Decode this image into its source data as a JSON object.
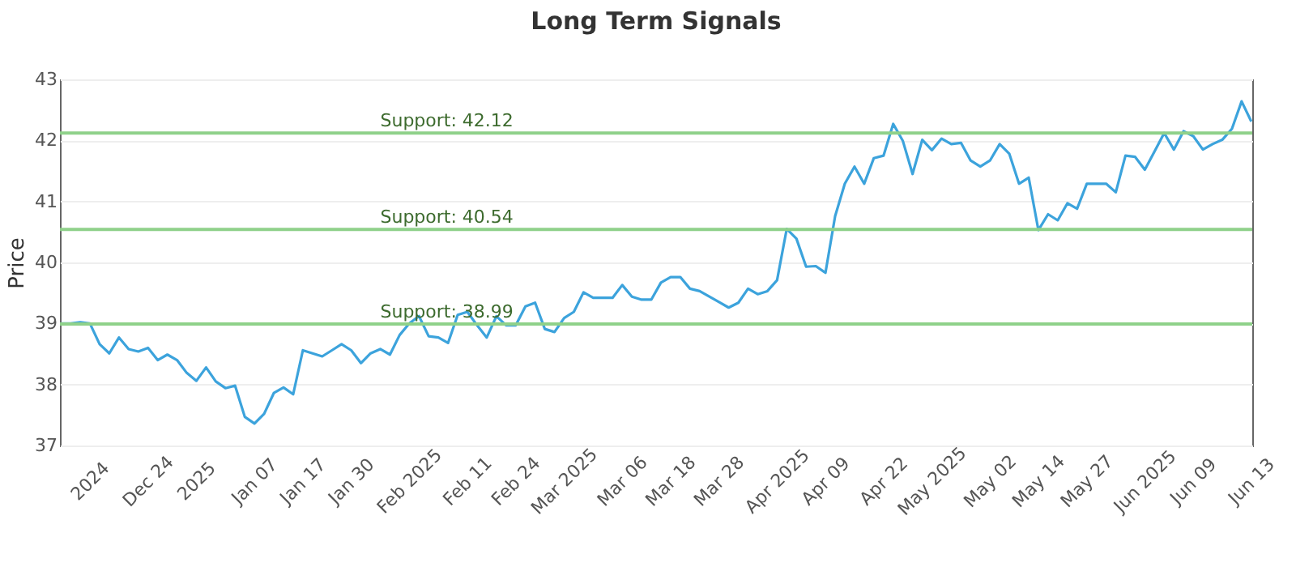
{
  "chart_data": {
    "type": "line",
    "title": "Long Term Signals",
    "ylabel": "Price",
    "categories": [
      null,
      null,
      null,
      "2024",
      null,
      null,
      null,
      null,
      null,
      "Dec 24",
      null,
      null,
      null,
      null,
      "2025",
      null,
      null,
      null,
      null,
      null,
      "Jan 07",
      null,
      null,
      null,
      null,
      "Jan 17",
      null,
      null,
      null,
      null,
      "Jan 30",
      null,
      null,
      null,
      null,
      null,
      "Feb 2025",
      null,
      null,
      null,
      null,
      null,
      "Feb 11",
      null,
      null,
      null,
      null,
      "Feb 24",
      null,
      null,
      null,
      null,
      "Mar 2025",
      null,
      null,
      null,
      null,
      null,
      "Mar 06",
      null,
      null,
      null,
      null,
      "Mar 18",
      null,
      null,
      null,
      null,
      "Mar 28",
      null,
      null,
      null,
      null,
      null,
      "Apr 2025",
      null,
      null,
      null,
      null,
      "Apr 09",
      null,
      null,
      null,
      null,
      null,
      "Apr 22",
      null,
      null,
      null,
      null,
      "May 2025",
      null,
      null,
      null,
      null,
      null,
      "May 02",
      null,
      null,
      null,
      null,
      "May 14",
      null,
      null,
      null,
      null,
      "May 27",
      null,
      null,
      null,
      null,
      null,
      "Jun 2025",
      null,
      null,
      null,
      null,
      "Jun 09",
      null,
      null,
      null,
      null,
      null,
      "Jun 13"
    ],
    "series": [
      {
        "color": "#3ca3dc",
        "values": [
          39.0,
          39.0,
          39.02,
          39.0,
          38.66,
          38.51,
          38.77,
          38.58,
          38.54,
          38.6,
          38.4,
          38.49,
          38.4,
          38.19,
          38.06,
          38.28,
          38.05,
          37.94,
          37.98,
          37.47,
          37.36,
          37.52,
          37.86,
          37.95,
          37.84,
          38.56,
          38.51,
          38.46,
          38.56,
          38.66,
          38.56,
          38.35,
          38.51,
          38.58,
          38.49,
          38.81,
          39.0,
          39.12,
          38.79,
          38.77,
          38.68,
          39.14,
          39.19,
          38.97,
          38.77,
          39.12,
          38.97,
          38.97,
          39.28,
          39.34,
          38.91,
          38.86,
          39.09,
          39.19,
          39.51,
          39.42,
          39.42,
          39.42,
          39.63,
          39.44,
          39.39,
          39.39,
          39.67,
          39.76,
          39.76,
          39.57,
          39.53,
          39.44,
          39.35,
          39.26,
          39.34,
          39.57,
          39.48,
          39.53,
          39.71,
          40.55,
          40.39,
          39.93,
          39.94,
          39.83,
          40.76,
          41.29,
          41.57,
          41.29,
          41.71,
          41.75,
          42.27,
          41.99,
          41.45,
          42.01,
          41.84,
          42.03,
          41.94,
          41.96,
          41.67,
          41.57,
          41.67,
          41.94,
          41.78,
          41.29,
          41.39,
          40.53,
          40.79,
          40.69,
          40.97,
          40.88,
          41.29,
          41.29,
          41.29,
          41.15,
          41.75,
          41.73,
          41.52,
          41.82,
          42.12,
          41.85,
          42.15,
          42.07,
          41.85,
          41.94,
          42.01,
          42.19,
          42.64,
          42.31
        ]
      }
    ],
    "ylim": [
      37,
      43
    ],
    "yticks": [
      37,
      38,
      39,
      40,
      41,
      42,
      43
    ],
    "grid": "y",
    "marker": "none",
    "line_style": "solid",
    "ref_lines": [
      {
        "axis": "y",
        "value": 42.12,
        "label": "Support: 42.12",
        "color": "#8fd18a"
      },
      {
        "axis": "y",
        "value": 40.54,
        "label": "Support: 40.54",
        "color": "#8fd18a"
      },
      {
        "axis": "y",
        "value": 38.99,
        "label": "Support: 38.99",
        "color": "#8fd18a"
      }
    ]
  }
}
